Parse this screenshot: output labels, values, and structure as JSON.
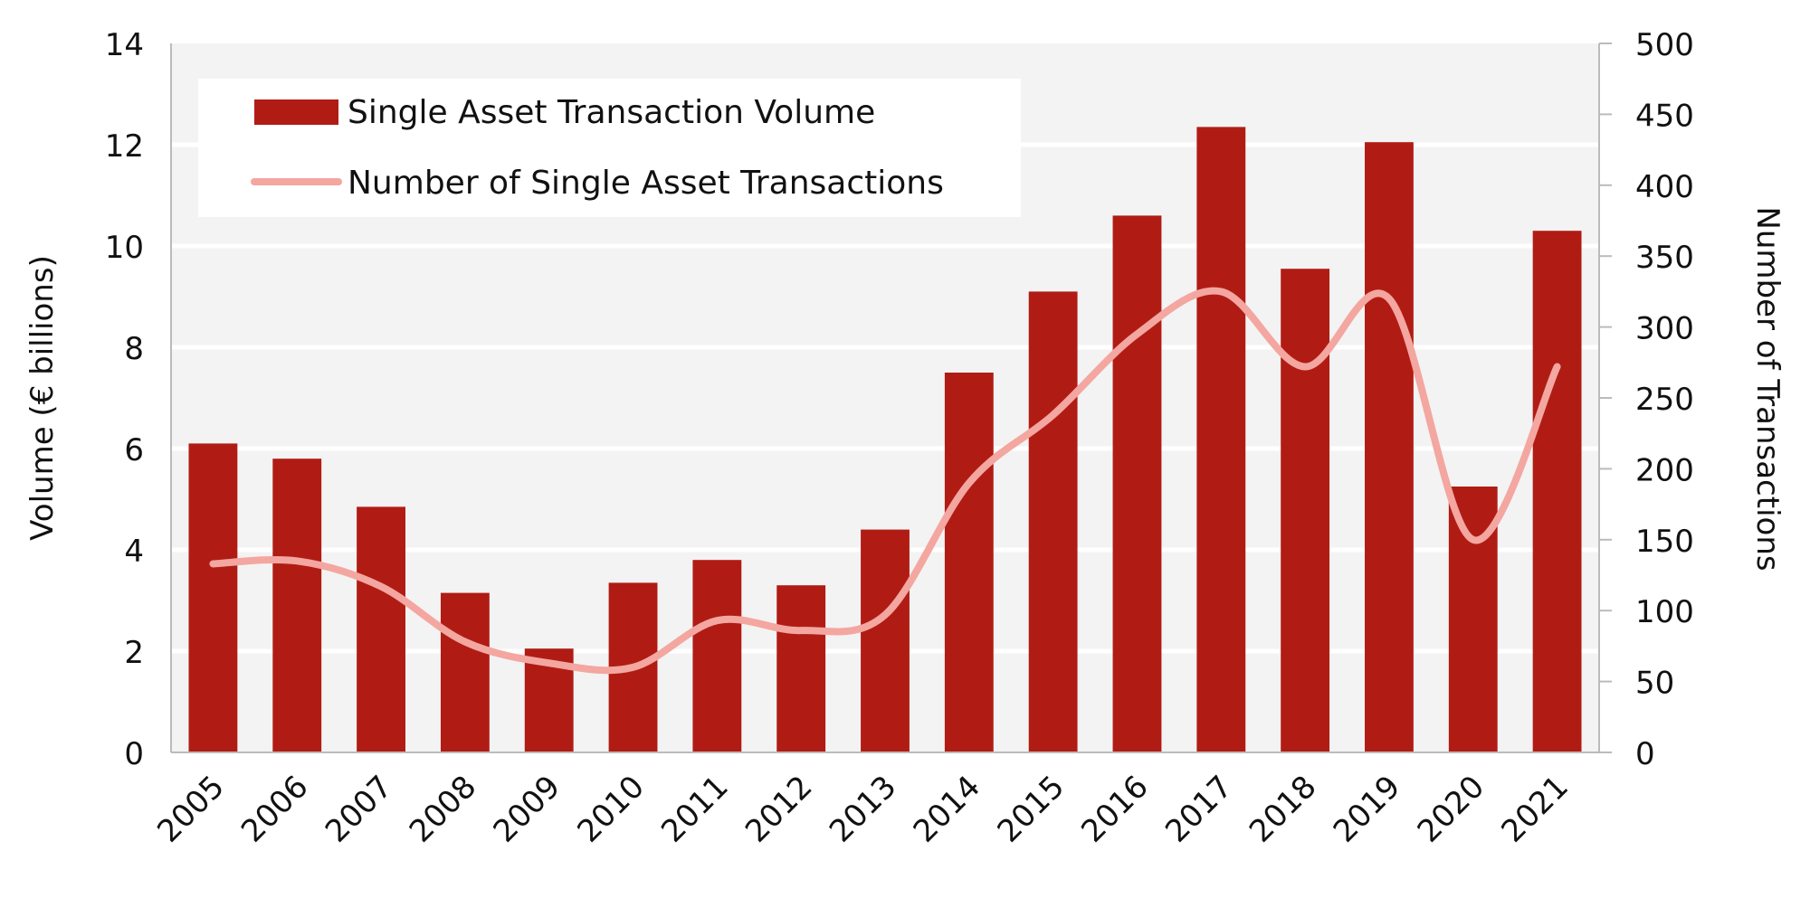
{
  "chart_data": {
    "type": "bar",
    "categories": [
      "2005",
      "2006",
      "2007",
      "2008",
      "2009",
      "2010",
      "2011",
      "2012",
      "2013",
      "2014",
      "2015",
      "2016",
      "2017",
      "2018",
      "2019",
      "2020",
      "2021"
    ],
    "series": [
      {
        "name": "Single Asset Transaction Volume",
        "type": "bar",
        "axis": "left",
        "color": "#b01c14",
        "values": [
          6.1,
          5.8,
          4.85,
          3.15,
          2.05,
          3.35,
          3.8,
          3.3,
          4.4,
          7.5,
          9.1,
          10.6,
          12.35,
          9.55,
          12.05,
          5.25,
          10.3
        ]
      },
      {
        "name": "Number of Single Asset Transactions",
        "type": "line",
        "axis": "right",
        "color": "#f4a6a0",
        "smooth": true,
        "values": [
          133,
          135,
          117,
          78,
          63,
          60,
          93,
          86,
          97,
          190,
          238,
          295,
          325,
          272,
          320,
          150,
          272
        ]
      }
    ],
    "ylabel": "Volume (€ billions)",
    "y2label": "Number of Transactions",
    "ylim": [
      0,
      14
    ],
    "y2lim": [
      0,
      500
    ],
    "yticks": [
      "0",
      "2",
      "4",
      "6",
      "8",
      "10",
      "12",
      "14"
    ],
    "y2ticks": [
      "0",
      "50",
      "100",
      "150",
      "200",
      "250",
      "300",
      "350",
      "400",
      "450",
      "500"
    ],
    "grid": true,
    "legend": "top-left"
  }
}
